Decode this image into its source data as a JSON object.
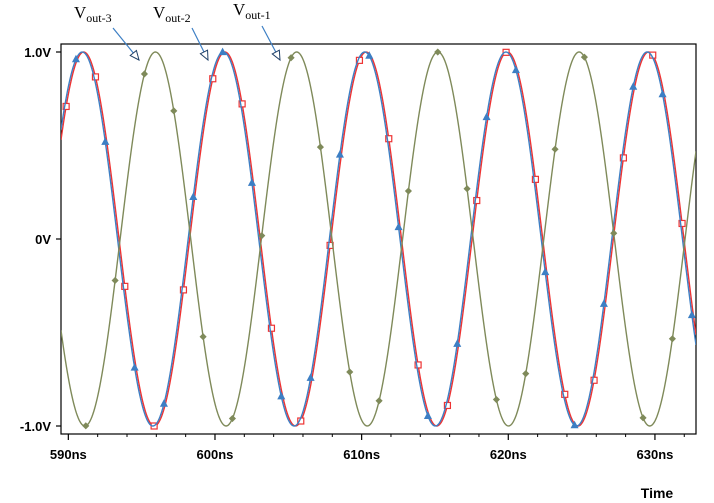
{
  "chart_data": {
    "type": "line",
    "title": "",
    "xlabel": "Time",
    "ylabel": "",
    "xlim": [
      589.5,
      632.8
    ],
    "ylim": [
      -1.0,
      1.0
    ],
    "x_unit": "ns",
    "y_unit": "V",
    "x_ticks": [
      {
        "value": 590,
        "label": "590ns"
      },
      {
        "value": 600,
        "label": "600ns"
      },
      {
        "value": 610,
        "label": "610ns"
      },
      {
        "value": 620,
        "label": "620ns"
      },
      {
        "value": 630,
        "label": "630ns"
      }
    ],
    "y_ticks": [
      {
        "value": 1.0,
        "label": "1.0V"
      },
      {
        "value": 0.0,
        "label": "0V"
      },
      {
        "value": -1.0,
        "label": "-1.0V"
      }
    ],
    "grid": false,
    "series": [
      {
        "name": "Vout-1",
        "label_main": "V",
        "label_sub": "out-1",
        "color": "#ee3333",
        "marker": "square",
        "amplitude": 1.0,
        "period_ns": 9.63,
        "peak_times_ns": [
          591.05,
          600.68,
          610.31,
          619.94,
          629.57
        ]
      },
      {
        "name": "Vout-2",
        "label_main": "V",
        "label_sub": "out-2",
        "color": "#3d7fc4",
        "marker": "triangle",
        "amplitude": 1.0,
        "period_ns": 9.63,
        "peak_times_ns": [
          590.95,
          600.58,
          610.21,
          619.84,
          629.47
        ]
      },
      {
        "name": "Vout-3",
        "label_main": "V",
        "label_sub": "out-3",
        "color": "#7f8a5a",
        "marker": "diamond",
        "amplitude": 1.0,
        "period_ns": 9.63,
        "peak_times_ns": [
          595.94,
          605.57,
          615.2,
          624.83
        ]
      }
    ]
  }
}
